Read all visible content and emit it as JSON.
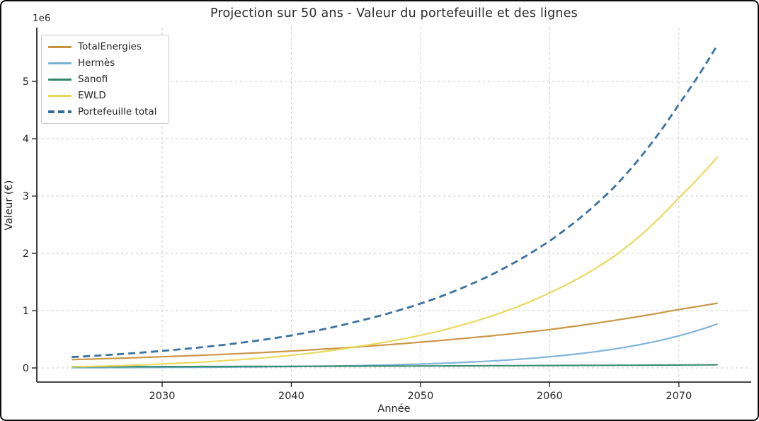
{
  "figure": {
    "title": "Projection sur 50 ans - Valeur du portefeuille et des lignes",
    "xlabel": "Année",
    "ylabel": "Valeur (€)",
    "y_offset_label": "1e6"
  },
  "colors": {
    "background": "#ffffff",
    "spine": "#2b2b2b",
    "grid": "#c9c9c9",
    "text": "#262626",
    "legend_border": "#cccccc"
  },
  "chart_data": {
    "type": "line",
    "title": "Projection sur 50 ans - Valeur du portefeuille et des lignes",
    "xlabel": "Année",
    "ylabel": "Valeur (€)",
    "y_unit_multiplier": "1e6",
    "grid": true,
    "legend_position": "upper-left",
    "xlim": [
      2020.3,
      2075.6
    ],
    "ylim_millions": [
      -0.247,
      5.94
    ],
    "xticks": [
      2030,
      2040,
      2050,
      2060,
      2070
    ],
    "yticks_millions": [
      0,
      1,
      2,
      3,
      4,
      5
    ],
    "x_years": [
      2023,
      2030,
      2035,
      2040,
      2045,
      2050,
      2055,
      2060,
      2065,
      2070,
      2073
    ],
    "series": [
      {
        "name": "TotalEnergies",
        "color": "#c8913d",
        "style": "solid",
        "width": 2.2,
        "values_millions": [
          0.145,
          0.195,
          0.24,
          0.295,
          0.365,
          0.45,
          0.55,
          0.67,
          0.83,
          1.02,
          1.13
        ]
      },
      {
        "name": "Hermès",
        "color": "#78b1d7",
        "style": "solid",
        "width": 2.2,
        "values_millions": [
          0.004,
          0.009,
          0.014,
          0.024,
          0.04,
          0.068,
          0.115,
          0.195,
          0.33,
          0.56,
          0.77
        ]
      },
      {
        "name": "Sanofi",
        "color": "#34886a",
        "style": "solid",
        "width": 2.2,
        "values_millions": [
          0.02,
          0.023,
          0.025,
          0.028,
          0.031,
          0.034,
          0.038,
          0.042,
          0.046,
          0.051,
          0.055
        ]
      },
      {
        "name": "EWLD",
        "color": "#e7d855",
        "style": "solid",
        "width": 2.2,
        "values_millions": [
          0.02,
          0.07,
          0.13,
          0.22,
          0.37,
          0.57,
          0.87,
          1.31,
          1.95,
          2.97,
          3.69
        ]
      },
      {
        "name": "Portefeuille total",
        "color": "#2e6a9e",
        "style": "dashed",
        "width": 2.8,
        "values_millions": [
          0.189,
          0.297,
          0.409,
          0.567,
          0.806,
          1.122,
          1.573,
          2.217,
          3.156,
          4.601,
          5.645
        ]
      }
    ]
  }
}
